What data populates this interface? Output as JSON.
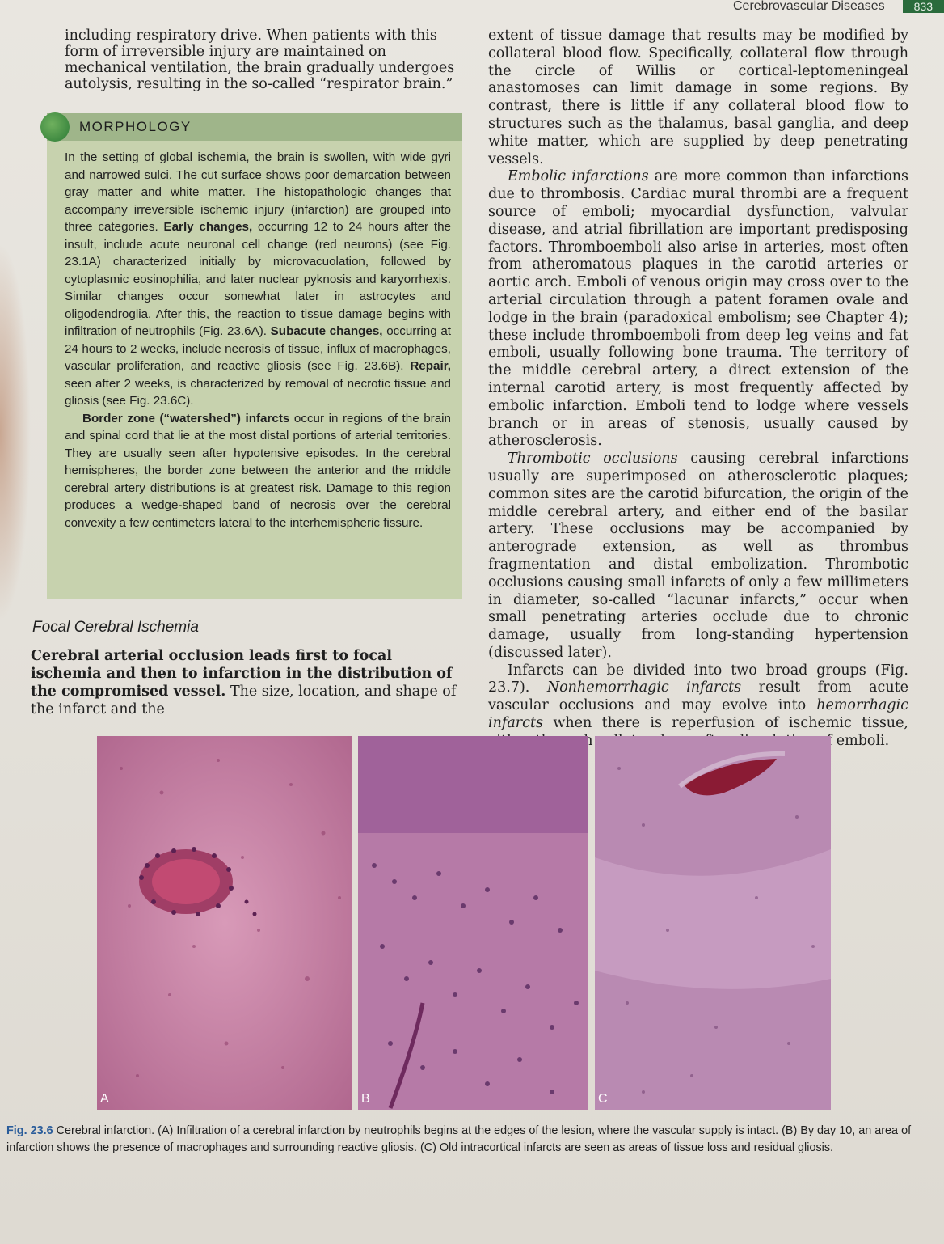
{
  "running_head": {
    "title": "Cerebrovascular Diseases",
    "page_number": "833"
  },
  "intro_paragraph": "including respiratory drive. When patients with this form of irreversible injury are maintained on mechanical ventilation, the brain gradually undergoes autolysis, resulting in the so-called “respirator brain.”",
  "morphology": {
    "heading": "MORPHOLOGY",
    "p1_a": "In the setting of global ischemia, the brain is swollen, with wide gyri and narrowed sulci. The cut surface shows poor demarcation between gray matter and white matter. The histopathologic changes that accompany irreversible ischemic injury (infarction) are grouped into three categories. ",
    "p1_b_bold": "Early changes,",
    "p1_c": " occurring 12 to 24 hours after the insult, include acute neuronal cell change (red neurons) (see Fig. 23.1A) characterized initially by microvacuolation, followed by cytoplasmic eosinophilia, and later nuclear pyknosis and karyorrhexis. Similar changes occur somewhat later in astrocytes and oligodendroglia. After this, the reaction to tissue damage begins with infiltration of neutrophils (Fig. 23.6A). ",
    "p1_d_bold": "Subacute changes,",
    "p1_e": " occurring at 24 hours to 2 weeks, include necrosis of tissue, influx of macrophages, vascular proliferation, and reactive gliosis (see Fig. 23.6B). ",
    "p1_f_bold": "Repair,",
    "p1_g": " seen after 2 weeks, is characterized by removal of necrotic tissue and gliosis (see Fig. 23.6C).",
    "p2_bold": "Border zone (“watershed”) infarcts",
    "p2_rest": " occur in regions of the brain and spinal cord that lie at the most distal portions of arterial territories. They are usually seen after hypotensive episodes. In the cerebral hemispheres, the border zone between the anterior and the middle cerebral artery distributions is at greatest risk. Damage to this region produces a wedge-shaped band of necrosis over the cerebral convexity a few centimeters lateral to the interhemispheric fissure."
  },
  "focal_section": {
    "heading": "Focal Cerebral Ischemia",
    "bold_lead": "Cerebral arterial occlusion leads first to focal ischemia and then to infarction in the distribution of the compromised vessel.",
    "rest": " The size, location, and shape of the infarct and the"
  },
  "right_column": {
    "p1": "extent of tissue damage that results may be modified by collateral blood flow. Specifically, collateral flow through the circle of Willis or cortical-leptomeningeal anastomoses can limit damage in some regions. By contrast, there is little if any collateral blood flow to structures such as the thalamus, basal ganglia, and deep white matter, which are supplied by deep penetrating vessels.",
    "p2_em": "Embolic infarctions",
    "p2_rest": " are more common than infarctions due to thrombosis. Cardiac mural thrombi are a frequent source of emboli; myocardial dysfunction, valvular disease, and atrial fibrillation are important predisposing factors. Thromboemboli also arise in arteries, most often from atheromatous plaques in the carotid arteries or aortic arch. Emboli of venous origin may cross over to the arterial circulation through a patent foramen ovale and lodge in the brain (paradoxical embolism; see Chapter 4); these include thromboemboli from deep leg veins and fat emboli, usually following bone trauma. The territory of the middle cerebral artery, a direct extension of the internal carotid artery, is most frequently affected by embolic infarction. Emboli tend to lodge where vessels branch or in areas of stenosis, usually caused by atherosclerosis.",
    "p3_em": "Thrombotic occlusions",
    "p3_rest": " causing cerebral infarctions usually are superimposed on atherosclerotic plaques; common sites are the carotid bifurcation, the origin of the middle cerebral artery, and either end of the basilar artery. These occlusions may be accompanied by anterograde extension, as well as thrombus fragmentation and distal embolization. Thrombotic occlusions causing small infarcts of only a few millimeters in diameter, so-called “lacunar infarcts,” occur when small penetrating arteries occlude due to chronic damage, usually from long-standing hypertension (discussed later).",
    "p4_a": "Infarcts can be divided into two broad groups (Fig. 23.7). ",
    "p4_em1": "Nonhemorrhagic infarcts",
    "p4_b": " result from acute vascular occlusions and may evolve into ",
    "p4_em2": "hemorrhagic infarcts",
    "p4_c": " when there is reperfusion of ischemic tissue, either through collaterals or after dissolution of emboli."
  },
  "figure": {
    "panels": [
      {
        "label": "A"
      },
      {
        "label": "B"
      },
      {
        "label": "C"
      }
    ],
    "caption_label": "Fig. 23.6",
    "caption_text": " Cerebral infarction. (A) Infiltration of a cerebral infarction by neutrophils begins at the edges of the lesion, where the vascular supply is intact. (B) By day 10, an area of infarction shows the presence of macrophages and surrounding reactive gliosis. (C) Old intracortical infarcts are seen as areas of tissue loss and residual gliosis."
  }
}
